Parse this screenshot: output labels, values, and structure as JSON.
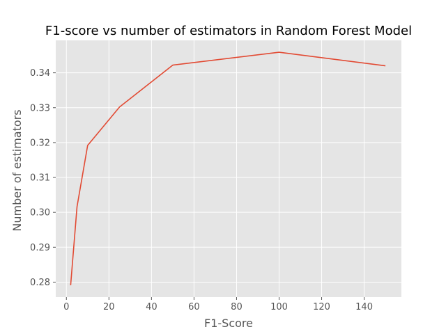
{
  "chart_data": {
    "type": "line",
    "title": "F1-score vs number of estimators in Random Forest Model",
    "xlabel": "F1-Score",
    "ylabel": "Number of estimators",
    "xlim": [
      -5,
      157.5
    ],
    "ylim": [
      0.2757,
      0.3493
    ],
    "x_ticks": [
      0,
      20,
      40,
      60,
      80,
      100,
      120,
      140
    ],
    "y_ticks": [
      0.28,
      0.29,
      0.3,
      0.31,
      0.32,
      0.33,
      0.34
    ],
    "x_tick_labels": [
      "0",
      "20",
      "40",
      "60",
      "80",
      "100",
      "120",
      "140"
    ],
    "y_tick_labels": [
      "0.28",
      "0.29",
      "0.30",
      "0.31",
      "0.32",
      "0.33",
      "0.34"
    ],
    "grid": true,
    "series": [
      {
        "x": [
          2,
          5,
          10,
          25,
          50,
          100,
          150
        ],
        "y": [
          0.2791,
          0.3016,
          0.3192,
          0.3302,
          0.3422,
          0.3459,
          0.342
        ],
        "color": "#E24A33"
      }
    ],
    "colors": {
      "plot_background": "#E5E5E5",
      "grid": "#FFFFFF",
      "line": "#E24A33"
    }
  }
}
